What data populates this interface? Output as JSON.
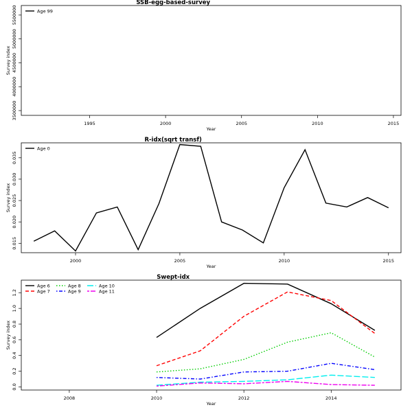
{
  "chart_data": [
    {
      "type": "line",
      "title": "SSB-egg-based-survey",
      "xlabel": "Year",
      "ylabel": "Survey index",
      "xlim": [
        1990.5,
        2015.5
      ],
      "ylim": [
        3400000,
        5700000
      ],
      "xticks": [
        1995,
        2000,
        2005,
        2010,
        2015
      ],
      "yticks": [
        3500000,
        4000000,
        4500000,
        5000000,
        5500000
      ],
      "legend": "top-left",
      "series": [
        {
          "name": "Age 99",
          "color": "#000000",
          "dash": "solid",
          "x": [],
          "y": []
        }
      ]
    },
    {
      "type": "line",
      "title": "R-idx(sqrt transf)",
      "xlabel": "Year",
      "ylabel": "Survey index",
      "xlim": [
        1997.4,
        2015.6
      ],
      "ylim": [
        0.0128,
        0.0385
      ],
      "xticks": [
        2000,
        2005,
        2010,
        2015
      ],
      "yticks": [
        0.015,
        0.02,
        0.025,
        0.03,
        0.035
      ],
      "legend": "top-left",
      "series": [
        {
          "name": "Age 0",
          "color": "#000000",
          "dash": "solid",
          "x": [
            1998,
            1999,
            2000,
            2001,
            2002,
            2003,
            2004,
            2005,
            2006,
            2007,
            2008,
            2009,
            2010,
            2011,
            2012,
            2013,
            2014,
            2015
          ],
          "y": [
            0.0155,
            0.0179,
            0.0132,
            0.0221,
            0.0235,
            0.0135,
            0.0243,
            0.0381,
            0.0377,
            0.02,
            0.0181,
            0.0151,
            0.028,
            0.0369,
            0.0244,
            0.0235,
            0.0257,
            0.0233
          ]
        }
      ]
    },
    {
      "type": "line",
      "title": "Swept-idx",
      "xlabel": "Year",
      "ylabel": "Survey index",
      "xlim": [
        2006.9,
        2015.6
      ],
      "ylim": [
        -0.04,
        1.36
      ],
      "xticks": [
        2008,
        2010,
        2012,
        2014
      ],
      "yticks": [
        0.0,
        0.2,
        0.4,
        0.6,
        0.8,
        1.0,
        1.2
      ],
      "legend": "top-left",
      "series": [
        {
          "name": "Age 6",
          "color": "#000000",
          "dash": "solid",
          "x": [
            2010,
            2011,
            2012,
            2013,
            2014,
            2015
          ],
          "y": [
            0.63,
            1.0,
            1.32,
            1.31,
            1.06,
            0.72
          ]
        },
        {
          "name": "Age 7",
          "color": "#ff0000",
          "dash": "dashed",
          "x": [
            2010,
            2011,
            2012,
            2013,
            2014,
            2015
          ],
          "y": [
            0.27,
            0.46,
            0.9,
            1.21,
            1.1,
            0.68
          ]
        },
        {
          "name": "Age 8",
          "color": "#00cd00",
          "dash": "dotted",
          "x": [
            2010,
            2011,
            2012,
            2013,
            2014,
            2015
          ],
          "y": [
            0.19,
            0.23,
            0.35,
            0.57,
            0.69,
            0.38
          ]
        },
        {
          "name": "Age 9",
          "color": "#0000ff",
          "dash": "dotdash",
          "x": [
            2010,
            2011,
            2012,
            2013,
            2014,
            2015
          ],
          "y": [
            0.12,
            0.1,
            0.19,
            0.2,
            0.3,
            0.22
          ]
        },
        {
          "name": "Age 10",
          "color": "#00eeee",
          "dash": "longdash",
          "x": [
            2010,
            2011,
            2012,
            2013,
            2014,
            2015
          ],
          "y": [
            0.02,
            0.06,
            0.07,
            0.09,
            0.15,
            0.12
          ]
        },
        {
          "name": "Age 11",
          "color": "#ee00ee",
          "dash": "twodash",
          "x": [
            2010,
            2011,
            2012,
            2013,
            2014,
            2015
          ],
          "y": [
            0.01,
            0.05,
            0.04,
            0.07,
            0.03,
            0.02
          ]
        }
      ]
    }
  ]
}
